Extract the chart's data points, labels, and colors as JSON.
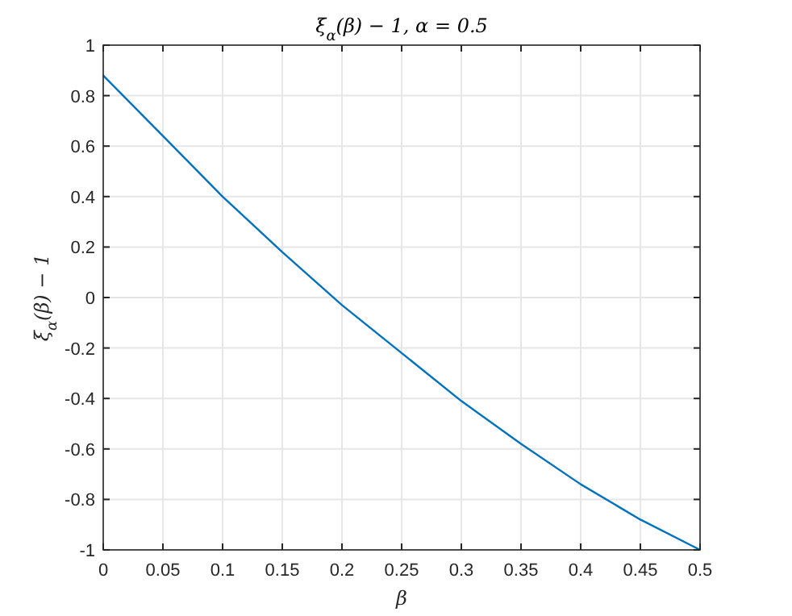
{
  "chart_data": {
    "type": "line",
    "title": "ξ$_{α}$(β) − 1, α = 0.5",
    "xlabel": "β",
    "ylabel": "ξ$_{α}$(β) − 1",
    "x": [
      0,
      0.05,
      0.1,
      0.15,
      0.2,
      0.25,
      0.3,
      0.35,
      0.4,
      0.45,
      0.5
    ],
    "series": [
      {
        "color": "#0072bd",
        "values": [
          0.88,
          0.64,
          0.4,
          0.18,
          -0.03,
          -0.22,
          -0.41,
          -0.58,
          -0.74,
          -0.88,
          -1
        ]
      }
    ],
    "xlim": [
      0,
      0.5
    ],
    "ylim": [
      -1,
      1
    ],
    "xticks": [
      0,
      0.05,
      0.1,
      0.15,
      0.2,
      0.25,
      0.3,
      0.35,
      0.4,
      0.45,
      0.5
    ],
    "yticks": [
      -1,
      -0.8,
      -0.6,
      -0.4,
      -0.2,
      0,
      0.2,
      0.4,
      0.6,
      0.8,
      1
    ],
    "grid": true,
    "marker": "none",
    "line_style": "solid"
  }
}
